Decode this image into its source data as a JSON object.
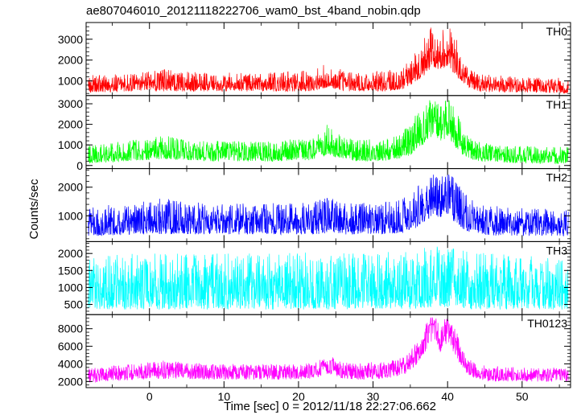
{
  "figure": {
    "title": "ae807046010_20121118222706_wam0_bst_4band_nobin.qdp",
    "xlabel": "Time [sec] 0 = 2012/11/18 22:27:06.662",
    "ylabel": "Counts/sec"
  },
  "chart_data": [
    {
      "type": "line",
      "panel": "TH0",
      "color": "#ff0000",
      "xlim": [
        -8.5,
        56.5
      ],
      "ylim": [
        300,
        3800
      ],
      "yticks": [
        1000,
        2000,
        3000
      ],
      "ytick_labels": [
        "1000",
        "2000",
        "3000"
      ],
      "series": [
        {
          "name": "TH0",
          "x": [
            -8,
            -5,
            -2,
            0,
            2,
            5,
            8,
            11,
            14,
            17,
            20,
            22,
            24,
            26,
            28,
            30,
            32,
            34,
            35,
            36,
            37,
            38,
            39,
            40,
            41,
            42,
            43,
            44,
            46,
            50,
            56
          ],
          "y": [
            750,
            800,
            850,
            850,
            900,
            850,
            850,
            850,
            850,
            850,
            850,
            900,
            1150,
            900,
            850,
            850,
            900,
            1000,
            1200,
            1500,
            2000,
            2500,
            2200,
            2500,
            1900,
            1300,
            1000,
            850,
            800,
            750,
            700
          ],
          "ymin": [
            450,
            450,
            500,
            500,
            500,
            500,
            500,
            500,
            500,
            500,
            500,
            500,
            700,
            500,
            500,
            500,
            500,
            600,
            800,
            1000,
            1300,
            1700,
            1500,
            1700,
            1300,
            900,
            650,
            500,
            450,
            450,
            400
          ],
          "ymax": [
            1300,
            1350,
            1450,
            1450,
            1600,
            1450,
            1400,
            1400,
            1400,
            1400,
            1500,
            1500,
            1900,
            1500,
            1400,
            1450,
            1500,
            1700,
            2000,
            2600,
            3500,
            3800,
            3400,
            3800,
            3200,
            2200,
            1600,
            1400,
            1300,
            1200,
            1150
          ]
        }
      ]
    },
    {
      "type": "line",
      "panel": "TH1",
      "color": "#00ff00",
      "xlim": [
        -8.5,
        56.5
      ],
      "ylim": [
        -150,
        3400
      ],
      "yticks": [
        0,
        1000,
        2000,
        3000
      ],
      "ytick_labels": [
        "0",
        "1000",
        "2000",
        "3000"
      ],
      "series": [
        {
          "name": "TH1",
          "x": [
            -8,
            -5,
            -2,
            0,
            2,
            5,
            8,
            11,
            14,
            17,
            20,
            22,
            24,
            26,
            28,
            30,
            32,
            34,
            35,
            36,
            37,
            38,
            39,
            40,
            41,
            42,
            43,
            44,
            46,
            50,
            56
          ],
          "y": [
            450,
            550,
            650,
            700,
            750,
            650,
            600,
            600,
            550,
            600,
            650,
            700,
            1000,
            650,
            600,
            600,
            650,
            800,
            1000,
            1400,
            1900,
            2300,
            1900,
            2300,
            1600,
            1000,
            700,
            600,
            500,
            450,
            400
          ],
          "ymin": [
            100,
            150,
            250,
            250,
            300,
            250,
            200,
            200,
            200,
            200,
            250,
            250,
            500,
            250,
            200,
            200,
            250,
            350,
            500,
            800,
            1100,
            1400,
            1100,
            1400,
            900,
            500,
            300,
            200,
            150,
            100,
            80
          ],
          "ymax": [
            1050,
            1150,
            1250,
            1300,
            1500,
            1300,
            1200,
            1200,
            1150,
            1200,
            1300,
            1350,
            2100,
            1350,
            1250,
            1300,
            1400,
            1700,
            2000,
            2800,
            3200,
            3300,
            3000,
            3300,
            2800,
            1900,
            1400,
            1200,
            1000,
            950,
            900
          ]
        }
      ]
    },
    {
      "type": "line",
      "panel": "TH2",
      "color": "#0000ff",
      "xlim": [
        -8.5,
        56.5
      ],
      "ylim": [
        100,
        2650
      ],
      "yticks": [
        1000,
        2000
      ],
      "ytick_labels": [
        "1000",
        "2000"
      ],
      "series": [
        {
          "name": "TH2",
          "x": [
            -8,
            -5,
            -2,
            0,
            2,
            5,
            8,
            11,
            14,
            17,
            20,
            22,
            24,
            26,
            28,
            30,
            32,
            34,
            35,
            36,
            37,
            38,
            39,
            40,
            41,
            42,
            43,
            44,
            46,
            50,
            56
          ],
          "y": [
            700,
            750,
            800,
            800,
            800,
            800,
            800,
            800,
            800,
            800,
            800,
            800,
            850,
            800,
            800,
            800,
            800,
            850,
            950,
            1100,
            1400,
            1700,
            1500,
            1700,
            1300,
            1000,
            850,
            800,
            750,
            750,
            700
          ],
          "ymin": [
            300,
            300,
            350,
            350,
            350,
            350,
            350,
            350,
            350,
            350,
            350,
            350,
            400,
            350,
            350,
            350,
            350,
            400,
            500,
            600,
            800,
            1000,
            900,
            1000,
            750,
            550,
            400,
            350,
            300,
            300,
            300
          ],
          "ymax": [
            1300,
            1400,
            1500,
            1500,
            1650,
            1500,
            1450,
            1450,
            1450,
            1450,
            1500,
            1500,
            1650,
            1500,
            1450,
            1500,
            1500,
            1600,
            1800,
            2100,
            2400,
            2600,
            2450,
            2600,
            2300,
            1900,
            1600,
            1450,
            1400,
            1300,
            1250
          ]
        }
      ]
    },
    {
      "type": "line",
      "panel": "TH3",
      "color": "#00ffff",
      "xlim": [
        -8.5,
        56.5
      ],
      "ylim": [
        200,
        2350
      ],
      "yticks": [
        500,
        1000,
        1500,
        2000
      ],
      "ytick_labels": [
        "500",
        "1000",
        "1500",
        "2000"
      ],
      "series": [
        {
          "name": "TH3",
          "x": [
            -8,
            -5,
            -2,
            0,
            2,
            5,
            8,
            11,
            14,
            17,
            20,
            22,
            24,
            26,
            28,
            30,
            32,
            34,
            35,
            36,
            37,
            38,
            39,
            40,
            41,
            42,
            43,
            44,
            46,
            50,
            56
          ],
          "y": [
            1000,
            1000,
            1000,
            1000,
            1000,
            1000,
            1000,
            1000,
            1000,
            1000,
            1000,
            1000,
            1000,
            1000,
            1000,
            1000,
            1000,
            1000,
            1000,
            1050,
            1100,
            1150,
            1100,
            1150,
            1100,
            1050,
            1000,
            1000,
            1000,
            1000,
            1000
          ],
          "ymin": [
            350,
            350,
            350,
            350,
            350,
            350,
            350,
            350,
            350,
            350,
            350,
            350,
            350,
            350,
            350,
            350,
            350,
            350,
            350,
            380,
            400,
            420,
            400,
            420,
            400,
            380,
            350,
            350,
            350,
            350,
            350
          ],
          "ymax": [
            1900,
            1950,
            2000,
            2000,
            2100,
            2000,
            2000,
            2000,
            2000,
            2000,
            2050,
            2050,
            2050,
            2050,
            2000,
            2050,
            2050,
            2050,
            2100,
            2150,
            2200,
            2250,
            2200,
            2250,
            2200,
            2150,
            2100,
            2050,
            2000,
            1950,
            1900
          ]
        }
      ]
    },
    {
      "type": "line",
      "panel": "TH0123",
      "color": "#ff00ff",
      "xlim": [
        -8.5,
        56.5
      ],
      "ylim": [
        1300,
        9600
      ],
      "yticks": [
        2000,
        4000,
        6000,
        8000
      ],
      "ytick_labels": [
        "2000",
        "4000",
        "6000",
        "8000"
      ],
      "series": [
        {
          "name": "TH0123",
          "x": [
            -8,
            -5,
            -2,
            0,
            2,
            5,
            8,
            11,
            14,
            17,
            20,
            22,
            24,
            26,
            28,
            30,
            32,
            34,
            35,
            36,
            37,
            38,
            39,
            40,
            41,
            42,
            43,
            44,
            46,
            50,
            56
          ],
          "y": [
            2700,
            2900,
            3100,
            3200,
            3300,
            3200,
            3100,
            3100,
            3100,
            3100,
            3100,
            3200,
            3900,
            3200,
            3100,
            3150,
            3300,
            3700,
            4300,
            5300,
            7000,
            8500,
            7000,
            8500,
            6500,
            4500,
            3500,
            3100,
            2900,
            2800,
            2700
          ],
          "ymin": [
            1900,
            2000,
            2200,
            2300,
            2300,
            2300,
            2200,
            2200,
            2200,
            2200,
            2200,
            2300,
            2900,
            2300,
            2200,
            2200,
            2400,
            2700,
            3200,
            4000,
            5300,
            6500,
            5300,
            6500,
            5000,
            3400,
            2600,
            2200,
            2000,
            2000,
            1900
          ],
          "ymax": [
            3600,
            3800,
            4000,
            4200,
            4400,
            4200,
            4000,
            4000,
            4000,
            4000,
            4100,
            4200,
            5000,
            4200,
            4100,
            4200,
            4300,
            4800,
            5500,
            6800,
            8700,
            9500,
            8800,
            9500,
            8300,
            5800,
            4500,
            4000,
            3800,
            3600,
            3500
          ]
        }
      ]
    }
  ],
  "xaxis": {
    "ticks": [
      0,
      10,
      20,
      30,
      40,
      50
    ],
    "tick_labels": [
      "0",
      "10",
      "20",
      "30",
      "40",
      "50"
    ]
  }
}
